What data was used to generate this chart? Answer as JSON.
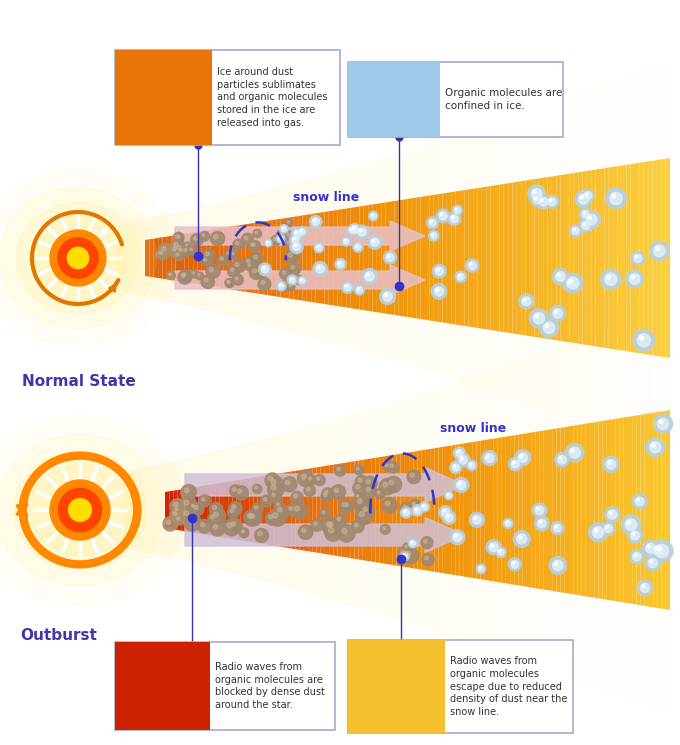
{
  "bg_color": "#ffffff",
  "normal_label": "Normal State",
  "outburst_label": "Outburst",
  "snow_line_label": "snow line",
  "snow_line_color": "#3333CC",
  "label_color": "#4433AA",
  "text_color_dark": "#333333",
  "annot1_text": "Ice around dust\nparticles sublimates\nand organic molecules\nstored in the ice are\nreleased into gas.",
  "annot2_text": "Organic molecules are\nconfined in ice.",
  "annot3_text": "Radio waves from\norganic molecules are\nblocked by dense dust\naround the star.",
  "annot4_text": "Radio waves from\norganic molecules\nescape due to reduced\ndensity of dust near the\nsnow line.",
  "sun_ray_color": "#FFFFFF",
  "sun_outer_color": "#FF8800",
  "sun_inner_color": "#FF4400",
  "sun_center_color": "#FFDD00",
  "glow_color": "#FFEE88",
  "disk_hot_color": "#CC3300",
  "disk_mid_color": "#E87010",
  "disk_outer_color": "#F5A820",
  "disk_far_color": "#FDD835",
  "outburst_hot_color": "#CC1100",
  "arrow_color_normal": "#E8C0C8",
  "arrow_color_outburst": "#D0C0D8",
  "dust_color": "#A08870",
  "ice_outer": "#B8D0E0",
  "ice_inner": "#E0EFFA"
}
